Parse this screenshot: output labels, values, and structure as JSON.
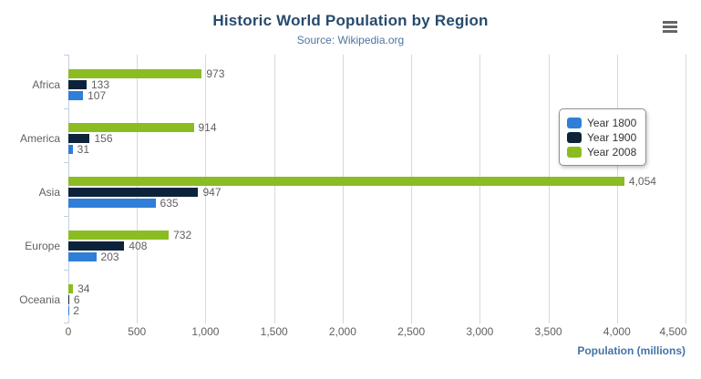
{
  "chart": {
    "title": "Historic World Population by Region",
    "subtitle": "Source: Wikipedia.org"
  },
  "chart_data": {
    "type": "bar",
    "orientation": "horizontal",
    "title": "Historic World Population by Region",
    "subtitle": "Source: Wikipedia.org",
    "categories": [
      "Africa",
      "America",
      "Asia",
      "Europe",
      "Oceania"
    ],
    "series": [
      {
        "name": "Year 1800",
        "color": "#2f7ed8",
        "values": [
          107,
          31,
          635,
          203,
          2
        ]
      },
      {
        "name": "Year 1900",
        "color": "#0d233a",
        "values": [
          133,
          156,
          947,
          408,
          6
        ]
      },
      {
        "name": "Year 2008",
        "color": "#8bbc21",
        "values": [
          973,
          914,
          4054,
          732,
          34
        ]
      }
    ],
    "bar_order_top_to_bottom": [
      "Year 2008",
      "Year 1900",
      "Year 1800"
    ],
    "xlabel": "Population (millions)",
    "xlim": [
      0,
      4500
    ],
    "xticks": [
      0,
      500,
      1000,
      1500,
      2000,
      2500,
      3000,
      3500,
      4000,
      4500
    ],
    "grid": true,
    "data_labels": true,
    "legend_position": "right-inside"
  },
  "legend": {
    "items": [
      {
        "label": "Year 1800",
        "color": "#2f7ed8"
      },
      {
        "label": "Year 1900",
        "color": "#0d233a"
      },
      {
        "label": "Year 2008",
        "color": "#8bbc21"
      }
    ]
  },
  "colors": {
    "title": "#274b6d",
    "subtitle": "#4d759e",
    "axis_labels": "#606060",
    "gridline": "#d8d8d8",
    "axis_line": "#c0d0e0",
    "axis_title": "#4572a7",
    "menu_icon": "#666666"
  }
}
